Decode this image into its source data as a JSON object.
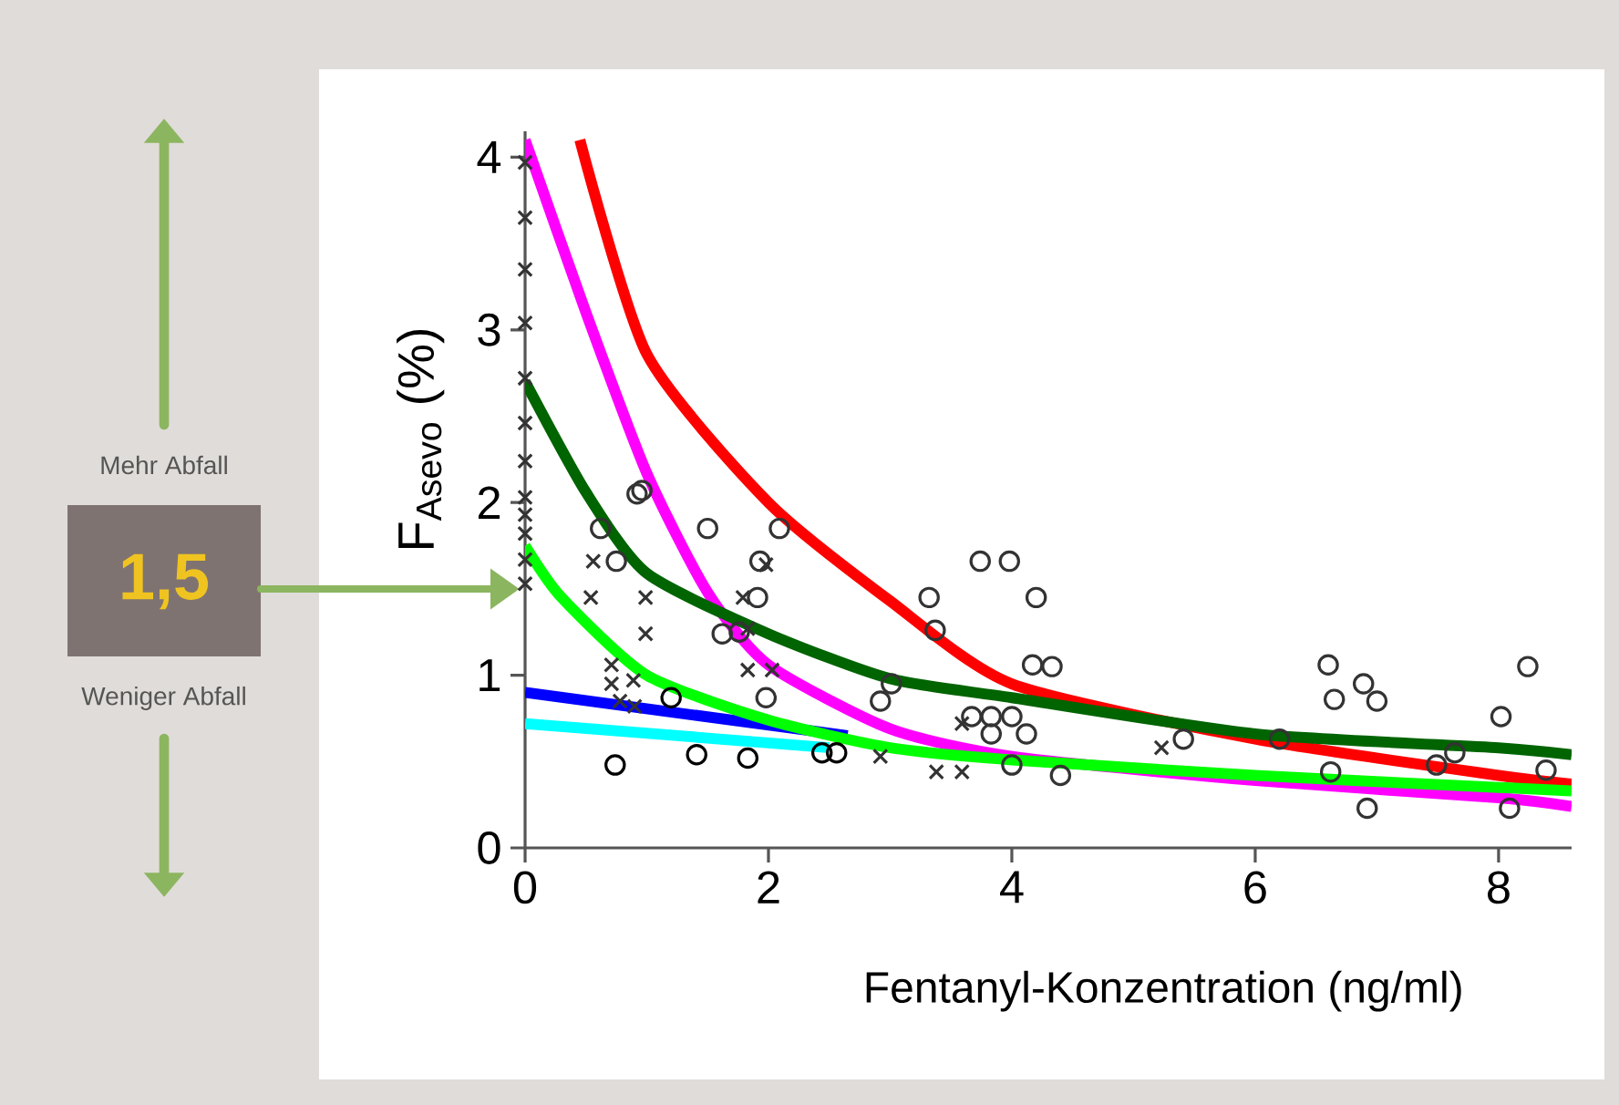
{
  "chart_data": {
    "type": "scatter",
    "xlabel": "Fentanyl-Konzentration (ng/ml)",
    "ylabel": "F$_{Asevo}$ (%)",
    "xlim": [
      0,
      8.6
    ],
    "ylim": [
      0,
      4.15
    ],
    "xticks": [
      0,
      2,
      4,
      6,
      8
    ],
    "yticks": [
      0,
      1,
      2,
      3,
      4
    ],
    "annotations": [
      "Mehr Abfall",
      "1,5",
      "Weniger Abfall"
    ],
    "series": [
      {
        "marker": "circle",
        "color": "#333333",
        "x": [
          0.96,
          0.92,
          1.5,
          2.09,
          0.62,
          0.75,
          1.93,
          1.91,
          1.76,
          1.62,
          3.74,
          3.98,
          3.32,
          3.37,
          4.17,
          3.01,
          2.92,
          1.98,
          3.67,
          3.83,
          4.0,
          3.83,
          4.12,
          4.2,
          4.33,
          4.4,
          4.0,
          5.41,
          6.2,
          6.6,
          6.65,
          6.89,
          7.0,
          6.92,
          7.49,
          7.64,
          8.02,
          8.24,
          8.39,
          8.09,
          6.62
        ],
        "values": [
          2.07,
          2.05,
          1.85,
          1.85,
          1.85,
          1.66,
          1.66,
          1.45,
          1.25,
          1.24,
          1.66,
          1.66,
          1.45,
          1.26,
          1.06,
          0.95,
          0.85,
          0.87,
          0.76,
          0.76,
          0.76,
          0.66,
          0.66,
          1.45,
          1.05,
          0.42,
          0.48,
          0.63,
          0.63,
          1.06,
          0.86,
          0.95,
          0.85,
          0.23,
          0.48,
          0.55,
          0.76,
          1.05,
          0.45,
          0.23,
          0.44
        ]
      },
      {
        "marker": "cross",
        "color": "#333333",
        "x": [
          0,
          0,
          0,
          0,
          0,
          0,
          0,
          0,
          0,
          0,
          0,
          0,
          0.56,
          0.54,
          0.99,
          0.99,
          0.71,
          0.89,
          0.71,
          0.78,
          0.9,
          1.79,
          1.83,
          2.03,
          2.92,
          3.38,
          3.59,
          3.59,
          1.83,
          1.98,
          5.23
        ],
        "values": [
          3.97,
          3.65,
          3.35,
          3.04,
          2.72,
          2.46,
          2.24,
          2.03,
          1.93,
          1.82,
          1.67,
          1.53,
          1.66,
          1.45,
          1.45,
          1.24,
          1.06,
          0.97,
          0.95,
          0.85,
          0.82,
          1.45,
          1.03,
          1.03,
          0.53,
          0.44,
          0.44,
          0.72,
          1.27,
          1.64,
          0.58
        ]
      },
      {
        "marker": "circle",
        "color": "#000000",
        "x": [
          0.74,
          1.41,
          1.83,
          2.44,
          2.56,
          1.2
        ],
        "values": [
          0.48,
          0.54,
          0.52,
          0.55,
          0.55,
          0.87
        ]
      },
      {
        "type": "line",
        "color": "#00ffff",
        "x": [
          0,
          2.5
        ],
        "values": [
          0.72,
          0.58
        ]
      },
      {
        "type": "line",
        "color": "#0000ff",
        "x": [
          0,
          2.65
        ],
        "values": [
          0.9,
          0.65
        ]
      },
      {
        "type": "line",
        "color": "#ff0000",
        "x": [
          0.45,
          1,
          2,
          3,
          4,
          6,
          8,
          8.6
        ],
        "values": [
          4.1,
          2.86,
          2.0,
          1.43,
          0.95,
          0.63,
          0.42,
          0.37
        ]
      },
      {
        "type": "line",
        "color": "#ff00ff",
        "x": [
          0,
          0.5,
          1,
          1.5,
          2,
          3,
          4,
          6,
          8,
          8.6
        ],
        "values": [
          4.1,
          3.1,
          2.17,
          1.48,
          1.06,
          0.69,
          0.53,
          0.39,
          0.29,
          0.24
        ]
      },
      {
        "type": "line",
        "color": "#006400",
        "x": [
          0,
          0.5,
          1,
          2,
          3,
          4,
          6,
          8,
          8.6
        ],
        "values": [
          2.7,
          2.06,
          1.59,
          1.24,
          0.98,
          0.87,
          0.66,
          0.58,
          0.54
        ]
      },
      {
        "type": "line",
        "color": "#00ff00",
        "x": [
          0,
          0.3,
          1,
          2,
          3,
          4,
          6,
          8,
          8.6
        ],
        "values": [
          1.75,
          1.45,
          1.0,
          0.74,
          0.58,
          0.51,
          0.42,
          0.35,
          0.33
        ]
      }
    ]
  }
}
